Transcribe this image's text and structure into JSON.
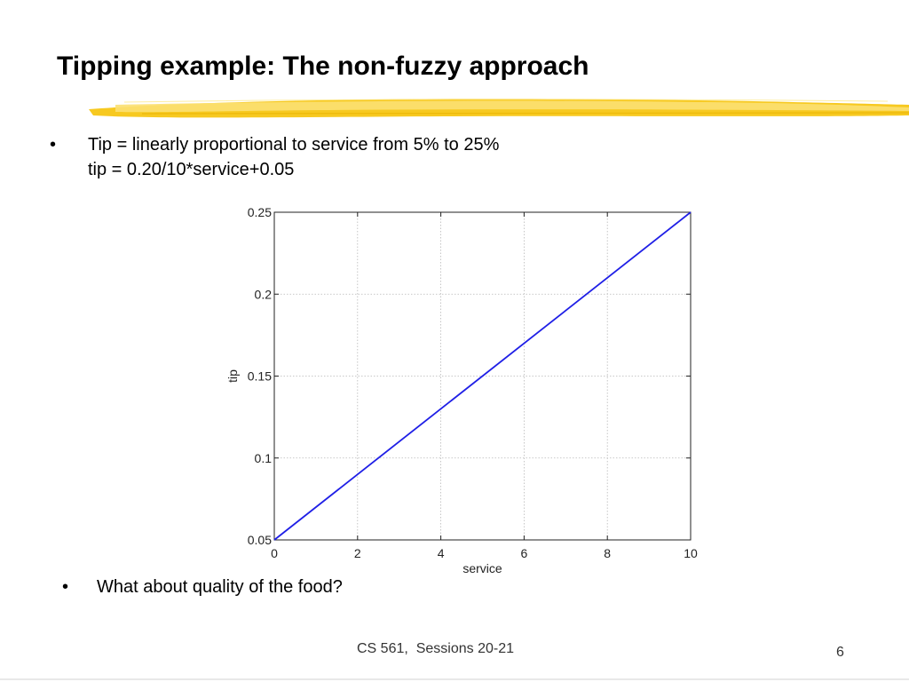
{
  "slide": {
    "title": "Tipping example:  The non-fuzzy approach",
    "bullet_symbol": "•",
    "bullet1_line1": "Tip = linearly proportional to service from 5% to 25%",
    "bullet1_line2": "tip = 0.20/10*service+0.05",
    "bullet2": "What about quality of the food?",
    "footer": "CS 561,  Sessions 20-21",
    "page_number": "6",
    "underline_color": "#f5c518"
  },
  "chart_data": {
    "type": "line",
    "title": "",
    "xlabel": "service",
    "ylabel": "tip",
    "xlim": [
      0,
      10
    ],
    "ylim": [
      0.05,
      0.25
    ],
    "x_ticks": [
      "0",
      "2",
      "4",
      "6",
      "8",
      "10"
    ],
    "y_ticks": [
      "0.05",
      "0.1",
      "0.15",
      "0.2",
      "0.25"
    ],
    "grid": true,
    "series": [
      {
        "x": [
          0,
          10
        ],
        "y": [
          0.05,
          0.25
        ],
        "color": "#1f1fe6"
      }
    ]
  }
}
